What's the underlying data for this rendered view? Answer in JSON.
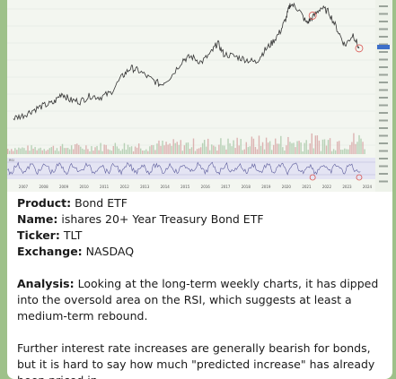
{
  "chart_data": {
    "type": "line",
    "title": "",
    "xlabel": "",
    "ylabel": "",
    "x_ticks": [
      "2007",
      "2008",
      "2009",
      "2010",
      "2011",
      "2012",
      "2013",
      "2014",
      "2015",
      "2016",
      "2017",
      "2018",
      "2019",
      "2020",
      "2021",
      "2022",
      "2023",
      "2024"
    ],
    "x": [
      2006.5,
      2007,
      2007.5,
      2008,
      2008.5,
      2008.9,
      2009.3,
      2009.8,
      2010.3,
      2010.8,
      2011.3,
      2011.9,
      2012.3,
      2012.7,
      2013.3,
      2013.8,
      2014.3,
      2014.9,
      2015.3,
      2015.8,
      2016.3,
      2016.6,
      2016.9,
      2017.5,
      2018,
      2018.5,
      2018.9,
      2019.3,
      2019.7,
      2020,
      2020.2,
      2020.6,
      2021,
      2021.3,
      2021.7,
      2022.1,
      2022.5,
      2022.9,
      2023.3,
      2023.6
    ],
    "y": [
      0.18,
      0.2,
      0.24,
      0.27,
      0.29,
      0.36,
      0.31,
      0.3,
      0.34,
      0.33,
      0.36,
      0.48,
      0.54,
      0.52,
      0.46,
      0.42,
      0.48,
      0.6,
      0.62,
      0.58,
      0.65,
      0.72,
      0.64,
      0.62,
      0.6,
      0.58,
      0.66,
      0.72,
      0.8,
      0.9,
      1.0,
      0.96,
      0.86,
      0.9,
      0.97,
      0.94,
      0.82,
      0.7,
      0.78,
      0.68
    ],
    "annotations": [
      {
        "label": "low marked",
        "x": 2021.3
      },
      {
        "label": "low marked",
        "x": 2023.6
      }
    ],
    "subpanel": {
      "type": "rsi",
      "label": "RSI"
    }
  },
  "message": {
    "fields": [
      {
        "label": "Product:",
        "value": "Bond ETF"
      },
      {
        "label": "Name:",
        "value": "ishares 20+ Year Treasury Bond ETF"
      },
      {
        "label": "Ticker:",
        "value": "TLT"
      },
      {
        "label": "Exchange:",
        "value": "NASDAQ"
      }
    ],
    "analysis_label": "Analysis:",
    "analysis_text": "Looking at the long-term weekly charts, it has dipped into the oversold area on the RSI, which suggests at least a medium-term rebound.",
    "paragraph2": "Further interest rate increases are generally bearish for bonds, but it is hard to say how much \"predicted increase\" has already been priced in."
  },
  "colors": {
    "line": "#333333",
    "marker": "#d9534f",
    "volume": "#c8c8c8",
    "rsi_band": "#e4e4f3",
    "background": "#9ec18a"
  }
}
